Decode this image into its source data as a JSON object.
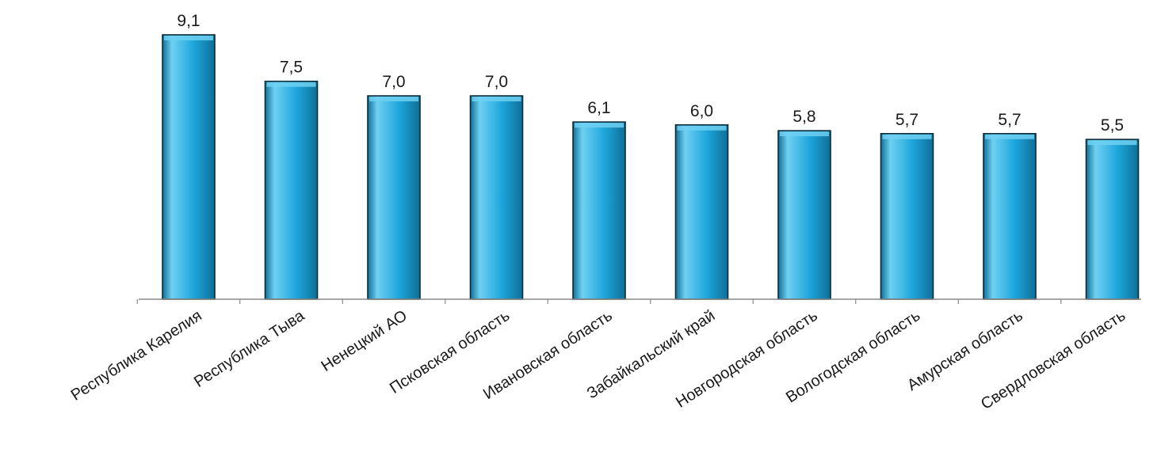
{
  "chart_data": {
    "type": "bar",
    "categories": [
      "Республика Карелия",
      "Республика Тыва",
      "Ненецкий АО",
      "Псковская область",
      "Ивановская область",
      "Забайкальский край",
      "Новгородская  область",
      "Вологодская область",
      "Амурская область",
      "Свердловская область"
    ],
    "values": [
      9.1,
      7.5,
      7.0,
      7.0,
      6.1,
      6.0,
      5.8,
      5.7,
      5.7,
      5.5
    ],
    "value_labels": [
      "9,1",
      "7,5",
      "7,0",
      "7,0",
      "6,1",
      "6,0",
      "5,8",
      "5,7",
      "5,7",
      "5,5"
    ],
    "title": "",
    "xlabel": "",
    "ylabel": "",
    "ylim": [
      0,
      9.1
    ],
    "grid": false,
    "legend": "none",
    "colors": {
      "bar_fill": "#1DA6DC",
      "bar_highlight": "#6FD0F2",
      "bar_shadow": "#0F6F96",
      "bar_outline": "#0C2C3A",
      "axis": "#8C8C8C",
      "text": "#1A1A1A"
    }
  }
}
